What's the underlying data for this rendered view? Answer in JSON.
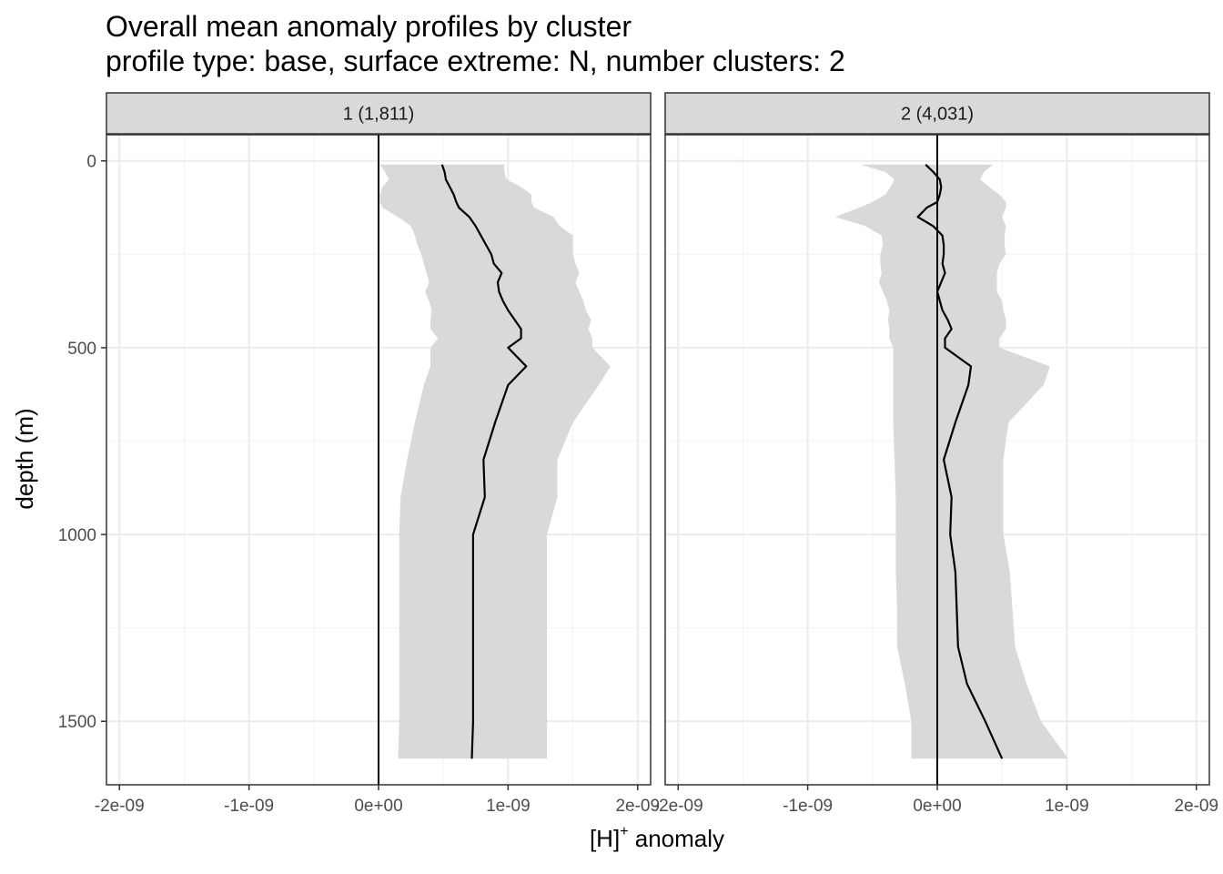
{
  "chart_data": {
    "type": "line",
    "title": "Overall mean anomaly profiles by cluster",
    "subtitle": "profile type: base, surface extreme: N, number clusters: 2",
    "xlabel_main": "[H]",
    "xlabel_sup": "+",
    "xlabel_rest": " anomaly",
    "ylabel": "depth (m)",
    "xlim": [
      -2.1e-09,
      2.1e-09
    ],
    "ylim": [
      1670,
      -70
    ],
    "y_reversed": true,
    "x_ticks": [
      -2e-09,
      -1e-09,
      0,
      1e-09,
      2e-09
    ],
    "x_tick_labels": [
      "-2e-09",
      "-1e-09",
      "0e+00",
      "1e-09",
      "2e-09"
    ],
    "y_ticks": [
      0,
      500,
      1000,
      1500
    ],
    "y_tick_labels": [
      "0",
      "500",
      "1000",
      "1500"
    ],
    "grid": true,
    "reference_line_x": 0,
    "colors": {
      "line": "#000000",
      "ribbon": "#d9d9d9",
      "strip_fill": "#d9d9d9",
      "grid_major": "#ebebeb",
      "grid_minor": "#f5f5f5",
      "panel_border": "#333333"
    },
    "panels": [
      {
        "label": "1 (1,811)",
        "depth": [
          10,
          30,
          50,
          70,
          90,
          110,
          125,
          150,
          175,
          200,
          225,
          250,
          275,
          300,
          325,
          350,
          375,
          400,
          425,
          450,
          475,
          500,
          550,
          600,
          700,
          800,
          900,
          1000,
          1100,
          1200,
          1300,
          1400,
          1500,
          1600
        ],
        "mean": [
          4.9e-10,
          5.1e-10,
          5.2e-10,
          5.5e-10,
          5.8e-10,
          6e-10,
          6.2e-10,
          7e-10,
          7.5e-10,
          7.9e-10,
          8.3e-10,
          8.7e-10,
          8.9e-10,
          9.5e-10,
          9.2e-10,
          9.3e-10,
          9.6e-10,
          1e-09,
          1.05e-09,
          1.1e-09,
          1.1e-09,
          1e-09,
          1.14e-09,
          1e-09,
          9e-10,
          8.1e-10,
          8.2e-10,
          7.3e-10,
          7.3e-10,
          7.3e-10,
          7.3e-10,
          7.3e-10,
          7.3e-10,
          7.2e-10
        ],
        "lower": [
          1e-11,
          5e-11,
          8e-11,
          3e-11,
          1e-11,
          1e-11,
          3e-11,
          1.5e-10,
          2.5e-10,
          2.8e-10,
          3e-10,
          3.3e-10,
          3.5e-10,
          3.7e-10,
          3.9e-10,
          3.6e-10,
          3.9e-10,
          4.1e-10,
          4e-10,
          4e-10,
          4.6e-10,
          4e-10,
          4e-10,
          3.5e-10,
          2.8e-10,
          2.2e-10,
          1.7e-10,
          1.6e-10,
          1.6e-10,
          1.6e-10,
          1.6e-10,
          1.6e-10,
          1.6e-10,
          1.5e-10
        ],
        "upper": [
          9.7e-10,
          9.7e-10,
          9.9e-10,
          1.1e-09,
          1.18e-09,
          1.18e-09,
          1.2e-09,
          1.35e-09,
          1.4e-09,
          1.5e-09,
          1.5e-09,
          1.5e-09,
          1.52e-09,
          1.55e-09,
          1.52e-09,
          1.55e-09,
          1.58e-09,
          1.6e-09,
          1.64e-09,
          1.62e-09,
          1.65e-09,
          1.65e-09,
          1.79e-09,
          1.7e-09,
          1.5e-09,
          1.38e-09,
          1.38e-09,
          1.3e-09,
          1.3e-09,
          1.3e-09,
          1.3e-09,
          1.3e-09,
          1.3e-09,
          1.3e-09
        ]
      },
      {
        "label": "2 (4,031)",
        "depth": [
          10,
          30,
          50,
          70,
          90,
          110,
          125,
          150,
          175,
          200,
          225,
          250,
          275,
          300,
          325,
          350,
          375,
          400,
          425,
          450,
          475,
          500,
          550,
          600,
          700,
          800,
          900,
          1000,
          1100,
          1200,
          1300,
          1400,
          1500,
          1600
        ],
        "mean": [
          -9e-11,
          -3e-11,
          2e-11,
          3e-11,
          2e-11,
          0,
          -8e-11,
          -1.5e-10,
          -3e-11,
          4e-11,
          5e-11,
          5e-11,
          4e-11,
          6e-11,
          3e-11,
          0,
          2e-11,
          4e-11,
          8e-11,
          1.1e-10,
          6e-11,
          6e-11,
          2.6e-10,
          2.4e-10,
          1.4e-10,
          5e-11,
          1.1e-10,
          1e-10,
          1.4e-10,
          1.5e-10,
          1.6e-10,
          2.3e-10,
          3.7e-10,
          5e-10
        ],
        "lower": [
          -5.9e-10,
          -4e-10,
          -3.3e-10,
          -3.6e-10,
          -4e-10,
          -5e-10,
          -6e-10,
          -7.9e-10,
          -5.5e-10,
          -4.3e-10,
          -4.2e-10,
          -4.4e-10,
          -4.4e-10,
          -4.3e-10,
          -4.5e-10,
          -4.2e-10,
          -3.9e-10,
          -3.7e-10,
          -3.8e-10,
          -3.7e-10,
          -3.7e-10,
          -3.4e-10,
          -3.4e-10,
          -3.4e-10,
          -3.4e-10,
          -3.3e-10,
          -3.2e-10,
          -3.2e-10,
          -3.2e-10,
          -3.1e-10,
          -3.1e-10,
          -2.5e-10,
          -2e-10,
          -2e-10
        ],
        "upper": [
          4.3e-10,
          3.6e-10,
          3.3e-10,
          4e-10,
          4.8e-10,
          5.3e-10,
          5.3e-10,
          5e-10,
          5.3e-10,
          5.2e-10,
          5.2e-10,
          5.3e-10,
          4.8e-10,
          4.6e-10,
          4.6e-10,
          4.6e-10,
          5e-10,
          5.1e-10,
          5.3e-10,
          5.3e-10,
          4.8e-10,
          4.8e-10,
          8.7e-10,
          8.2e-10,
          5.5e-10,
          5.1e-10,
          5.1e-10,
          5.1e-10,
          5.6e-10,
          5.8e-10,
          6e-10,
          6.9e-10,
          8e-10,
          1.01e-09
        ]
      }
    ]
  }
}
